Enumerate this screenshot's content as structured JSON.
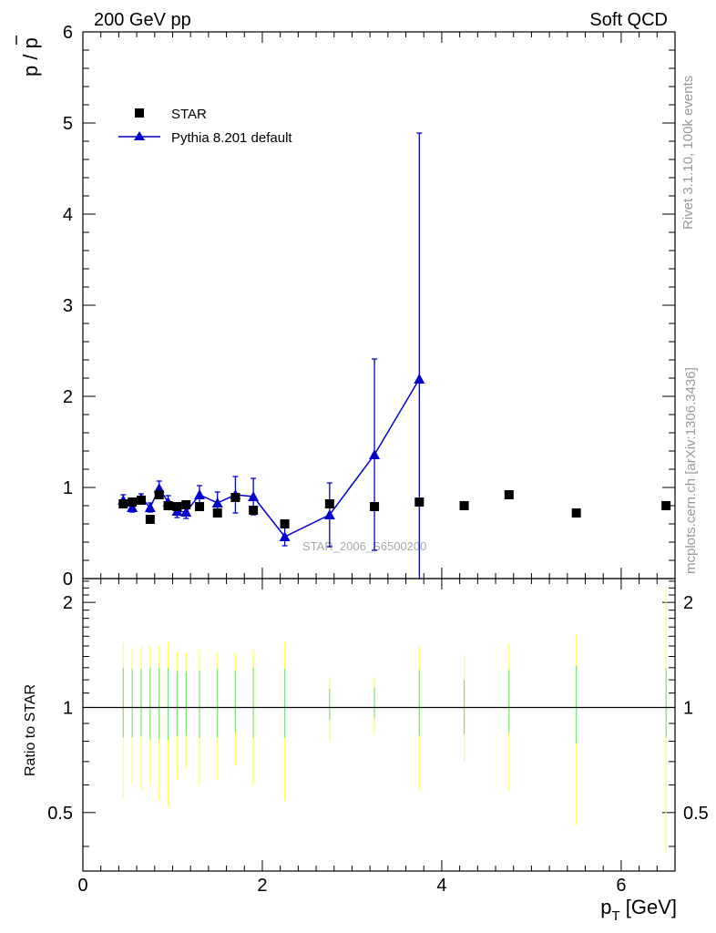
{
  "header": {
    "left": "200 GeV pp",
    "right": "Soft QCD"
  },
  "side_labels": {
    "rivet": "Rivet 3.1.10,  100k events",
    "source": "mcplots.cern.ch [arXiv:1306.3436]"
  },
  "watermark": "STAR_2006_S6500200",
  "axes": {
    "xlabel_main": "p",
    "xlabel_sub": "T",
    "xlabel_unit": " [GeV]",
    "ylabel_top_text": "p / p",
    "ylabel_bottom": "Ratio to STAR"
  },
  "colors": {
    "star": "#000000",
    "pythia": "#0000cc",
    "band_inner": "#7ee07e",
    "band_outer": "#ffff66"
  },
  "chart_data": [
    {
      "type": "scatter",
      "panel": "main",
      "xlim": [
        0,
        6.6
      ],
      "ylim": [
        0,
        6
      ],
      "xticks": [
        "0",
        "2",
        "4",
        "6"
      ],
      "yticks": [
        "0",
        "1",
        "2",
        "3",
        "4",
        "5",
        "6"
      ],
      "legend_position": "top-left",
      "series": [
        {
          "name": "STAR",
          "marker": "square",
          "x": [
            0.45,
            0.55,
            0.65,
            0.75,
            0.85,
            0.95,
            1.05,
            1.15,
            1.3,
            1.5,
            1.7,
            1.9,
            2.25,
            2.75,
            3.25,
            3.75,
            4.25,
            4.75,
            5.5,
            6.5
          ],
          "y": [
            0.82,
            0.84,
            0.86,
            0.65,
            0.92,
            0.8,
            0.79,
            0.81,
            0.79,
            0.72,
            0.89,
            0.75,
            0.6,
            0.82,
            0.79,
            0.84,
            0.8,
            0.92,
            0.72,
            0.8
          ]
        },
        {
          "name": "Pythia 8.201 default",
          "marker": "triangle",
          "x": [
            0.45,
            0.55,
            0.65,
            0.75,
            0.85,
            0.95,
            1.05,
            1.15,
            1.3,
            1.5,
            1.7,
            1.9,
            2.25,
            2.75,
            3.25,
            3.75
          ],
          "y": [
            0.86,
            0.78,
            0.88,
            0.78,
            0.99,
            0.84,
            0.74,
            0.73,
            0.92,
            0.83,
            0.92,
            0.9,
            0.46,
            0.7,
            1.36,
            2.19
          ],
          "err": [
            0.06,
            0.05,
            0.05,
            0.05,
            0.08,
            0.07,
            0.07,
            0.07,
            0.1,
            0.12,
            0.2,
            0.2,
            0.1,
            0.35,
            1.05,
            2.7
          ]
        }
      ]
    },
    {
      "type": "scatter",
      "panel": "ratio",
      "xlim": [
        0,
        6.6
      ],
      "ylim": [
        0.34,
        2.34
      ],
      "yticks": [
        "0.5",
        "1",
        "2"
      ],
      "reference_line": 1,
      "ratio_bands": {
        "x": [
          0.45,
          0.55,
          0.65,
          0.75,
          0.85,
          0.95,
          1.05,
          1.15,
          1.3,
          1.5,
          1.7,
          1.9,
          2.25,
          2.75,
          3.25,
          3.75,
          4.25,
          4.75,
          5.5,
          6.5
        ],
        "inner_lo": [
          0.82,
          0.82,
          0.83,
          0.81,
          0.81,
          0.81,
          0.83,
          0.83,
          0.82,
          0.82,
          0.85,
          0.82,
          0.82,
          0.92,
          0.93,
          0.83,
          0.84,
          0.85,
          0.79,
          0.82
        ],
        "inner_hi": [
          1.3,
          1.29,
          1.29,
          1.3,
          1.3,
          1.3,
          1.27,
          1.27,
          1.28,
          1.29,
          1.27,
          1.3,
          1.29,
          1.13,
          1.14,
          1.28,
          1.2,
          1.28,
          1.32,
          1.3
        ],
        "outer_lo": [
          0.55,
          0.6,
          0.58,
          0.6,
          0.54,
          0.52,
          0.62,
          0.67,
          0.6,
          0.62,
          0.68,
          0.6,
          0.54,
          0.8,
          0.84,
          0.58,
          0.7,
          0.58,
          0.46,
          0.38
        ],
        "outer_hi": [
          1.53,
          1.48,
          1.5,
          1.5,
          1.5,
          1.54,
          1.45,
          1.43,
          1.47,
          1.44,
          1.43,
          1.46,
          1.54,
          1.22,
          1.22,
          1.5,
          1.42,
          1.52,
          1.62,
          2.2
        ]
      }
    }
  ]
}
